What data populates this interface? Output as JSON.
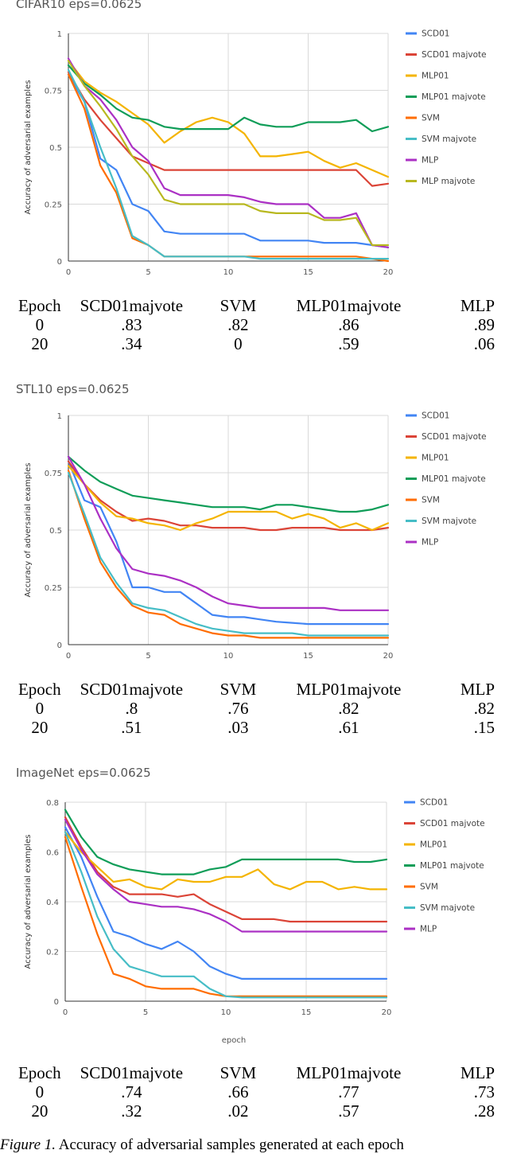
{
  "charts": [
    {
      "title": "CIFAR10 eps=0.0625",
      "chart_data": {
        "type": "line",
        "title": "CIFAR10 eps=0.0625",
        "xlabel": "",
        "ylabel": "Accuracy of adversarial examples",
        "xlim": [
          0,
          20
        ],
        "ylim": [
          0,
          1
        ],
        "xticks": [
          "0",
          "5",
          "10",
          "15",
          "20"
        ],
        "yticks": [
          "0",
          "0.25",
          "0.5",
          "0.75",
          "1"
        ],
        "x": [
          0,
          1,
          2,
          3,
          4,
          5,
          6,
          7,
          8,
          9,
          10,
          11,
          12,
          13,
          14,
          15,
          16,
          17,
          18,
          19,
          20
        ],
        "series": [
          {
            "name": "SCD01",
            "color": "#4285f4",
            "values": [
              0.82,
              0.7,
              0.45,
              0.4,
              0.25,
              0.22,
              0.13,
              0.12,
              0.12,
              0.12,
              0.12,
              0.12,
              0.09,
              0.09,
              0.09,
              0.09,
              0.08,
              0.08,
              0.08,
              0.07,
              0.06
            ]
          },
          {
            "name": "SCD01 majvote",
            "color": "#db4437",
            "values": [
              0.83,
              0.71,
              0.62,
              0.54,
              0.46,
              0.43,
              0.4,
              0.4,
              0.4,
              0.4,
              0.4,
              0.4,
              0.4,
              0.4,
              0.4,
              0.4,
              0.4,
              0.4,
              0.4,
              0.33,
              0.34
            ]
          },
          {
            "name": "MLP01",
            "color": "#f4b400",
            "values": [
              0.88,
              0.79,
              0.74,
              0.7,
              0.65,
              0.6,
              0.52,
              0.57,
              0.61,
              0.63,
              0.61,
              0.56,
              0.46,
              0.46,
              0.47,
              0.48,
              0.44,
              0.41,
              0.43,
              0.4,
              0.37
            ]
          },
          {
            "name": "MLP01 majvote",
            "color": "#0f9d58",
            "values": [
              0.86,
              0.78,
              0.73,
              0.67,
              0.63,
              0.62,
              0.59,
              0.58,
              0.58,
              0.58,
              0.58,
              0.63,
              0.6,
              0.59,
              0.59,
              0.61,
              0.61,
              0.61,
              0.62,
              0.57,
              0.59
            ]
          },
          {
            "name": "SVM",
            "color": "#ff6d01",
            "values": [
              0.82,
              0.67,
              0.42,
              0.3,
              0.1,
              0.07,
              0.02,
              0.02,
              0.02,
              0.02,
              0.02,
              0.02,
              0.02,
              0.02,
              0.02,
              0.02,
              0.02,
              0.02,
              0.02,
              0.01,
              0.0
            ]
          },
          {
            "name": "SVM majvote",
            "color": "#46bdc6",
            "values": [
              0.84,
              0.7,
              0.5,
              0.32,
              0.11,
              0.07,
              0.02,
              0.02,
              0.02,
              0.02,
              0.02,
              0.02,
              0.01,
              0.01,
              0.01,
              0.01,
              0.01,
              0.01,
              0.01,
              0.01,
              0.01
            ]
          },
          {
            "name": "MLP",
            "color": "#ab30c4",
            "values": [
              0.89,
              0.77,
              0.71,
              0.62,
              0.5,
              0.44,
              0.32,
              0.29,
              0.29,
              0.29,
              0.29,
              0.28,
              0.26,
              0.25,
              0.25,
              0.25,
              0.19,
              0.19,
              0.21,
              0.07,
              0.06
            ]
          },
          {
            "name": "MLP majvote",
            "color": "#b8b81f",
            "values": [
              0.88,
              0.77,
              0.68,
              0.58,
              0.46,
              0.38,
              0.27,
              0.25,
              0.25,
              0.25,
              0.25,
              0.25,
              0.22,
              0.21,
              0.21,
              0.21,
              0.18,
              0.18,
              0.19,
              0.07,
              0.07
            ]
          }
        ]
      },
      "table": {
        "headers": [
          "Epoch",
          "SCD01majvote",
          "SVM",
          "MLP01majvote",
          "MLP"
        ],
        "rows": [
          [
            "0",
            ".83",
            ".82",
            ".86",
            ".89"
          ],
          [
            "20",
            ".34",
            "0",
            ".59",
            ".06"
          ]
        ]
      }
    },
    {
      "title": "STL10 eps=0.0625",
      "chart_data": {
        "type": "line",
        "title": "STL10 eps=0.0625",
        "xlabel": "",
        "ylabel": "Accuracy of adversarial examples",
        "xlim": [
          0,
          20
        ],
        "ylim": [
          0,
          1
        ],
        "xticks": [
          "0",
          "5",
          "10",
          "15",
          "20"
        ],
        "yticks": [
          "0",
          "0.25",
          "0.5",
          "0.75",
          "1"
        ],
        "x": [
          0,
          1,
          2,
          3,
          4,
          5,
          6,
          7,
          8,
          9,
          10,
          11,
          12,
          13,
          14,
          15,
          16,
          17,
          18,
          19,
          20
        ],
        "series": [
          {
            "name": "SCD01",
            "color": "#4285f4",
            "values": [
              0.8,
              0.63,
              0.6,
              0.45,
              0.25,
              0.25,
              0.23,
              0.23,
              0.18,
              0.13,
              0.12,
              0.12,
              0.11,
              0.1,
              0.095,
              0.09,
              0.09,
              0.09,
              0.09,
              0.09,
              0.09
            ]
          },
          {
            "name": "SCD01 majvote",
            "color": "#db4437",
            "values": [
              0.8,
              0.7,
              0.63,
              0.58,
              0.54,
              0.55,
              0.54,
              0.52,
              0.52,
              0.51,
              0.51,
              0.51,
              0.5,
              0.5,
              0.51,
              0.51,
              0.51,
              0.5,
              0.5,
              0.5,
              0.51
            ]
          },
          {
            "name": "MLP01",
            "color": "#f4b400",
            "values": [
              0.78,
              0.7,
              0.62,
              0.56,
              0.55,
              0.53,
              0.52,
              0.5,
              0.53,
              0.55,
              0.58,
              0.58,
              0.58,
              0.58,
              0.55,
              0.57,
              0.55,
              0.51,
              0.53,
              0.5,
              0.53
            ]
          },
          {
            "name": "MLP01 majvote",
            "color": "#0f9d58",
            "values": [
              0.82,
              0.76,
              0.71,
              0.68,
              0.65,
              0.64,
              0.63,
              0.62,
              0.61,
              0.6,
              0.6,
              0.6,
              0.59,
              0.61,
              0.61,
              0.6,
              0.59,
              0.58,
              0.58,
              0.59,
              0.61
            ]
          },
          {
            "name": "SVM",
            "color": "#ff6d01",
            "values": [
              0.76,
              0.55,
              0.36,
              0.25,
              0.17,
              0.14,
              0.13,
              0.09,
              0.07,
              0.05,
              0.04,
              0.04,
              0.03,
              0.03,
              0.03,
              0.03,
              0.03,
              0.03,
              0.03,
              0.03,
              0.03
            ]
          },
          {
            "name": "SVM majvote",
            "color": "#46bdc6",
            "values": [
              0.75,
              0.57,
              0.38,
              0.27,
              0.18,
              0.16,
              0.15,
              0.12,
              0.09,
              0.07,
              0.06,
              0.05,
              0.05,
              0.05,
              0.05,
              0.04,
              0.04,
              0.04,
              0.04,
              0.04,
              0.04
            ]
          },
          {
            "name": "MLP",
            "color": "#ab30c4",
            "values": [
              0.82,
              0.7,
              0.55,
              0.42,
              0.33,
              0.31,
              0.3,
              0.28,
              0.25,
              0.21,
              0.18,
              0.17,
              0.16,
              0.16,
              0.16,
              0.16,
              0.16,
              0.15,
              0.15,
              0.15,
              0.15
            ]
          }
        ]
      },
      "table": {
        "headers": [
          "Epoch",
          "SCD01majvote",
          "SVM",
          "MLP01majvote",
          "MLP"
        ],
        "rows": [
          [
            "0",
            ".8",
            ".76",
            ".82",
            ".82"
          ],
          [
            "20",
            ".51",
            ".03",
            ".61",
            ".15"
          ]
        ]
      }
    },
    {
      "title": "ImageNet eps=0.0625",
      "chart_data": {
        "type": "line",
        "title": "ImageNet eps=0.0625",
        "xlabel": "epoch",
        "ylabel": "Accuracy of adversarial examples",
        "xlim": [
          0,
          20
        ],
        "ylim": [
          0,
          0.8
        ],
        "xticks": [
          "0",
          "5",
          "10",
          "15",
          "20"
        ],
        "yticks": [
          "0",
          "0.2",
          "0.4",
          "0.6",
          "0.8"
        ],
        "x": [
          0,
          1,
          2,
          3,
          4,
          5,
          6,
          7,
          8,
          9,
          10,
          11,
          12,
          13,
          14,
          15,
          16,
          17,
          18,
          19,
          20
        ],
        "series": [
          {
            "name": "SCD01",
            "color": "#4285f4",
            "values": [
              0.7,
              0.58,
              0.42,
              0.28,
              0.26,
              0.23,
              0.21,
              0.24,
              0.2,
              0.14,
              0.11,
              0.09,
              0.09,
              0.09,
              0.09,
              0.09,
              0.09,
              0.09,
              0.09,
              0.09,
              0.09
            ]
          },
          {
            "name": "SCD01 majvote",
            "color": "#db4437",
            "values": [
              0.74,
              0.62,
              0.52,
              0.46,
              0.43,
              0.43,
              0.43,
              0.42,
              0.43,
              0.39,
              0.36,
              0.33,
              0.33,
              0.33,
              0.32,
              0.32,
              0.32,
              0.32,
              0.32,
              0.32,
              0.32
            ]
          },
          {
            "name": "MLP01",
            "color": "#f4b400",
            "values": [
              0.68,
              0.6,
              0.54,
              0.48,
              0.49,
              0.46,
              0.45,
              0.49,
              0.48,
              0.48,
              0.5,
              0.5,
              0.53,
              0.47,
              0.45,
              0.48,
              0.48,
              0.45,
              0.46,
              0.45,
              0.45
            ]
          },
          {
            "name": "MLP01 majvote",
            "color": "#0f9d58",
            "values": [
              0.77,
              0.66,
              0.58,
              0.55,
              0.53,
              0.52,
              0.51,
              0.51,
              0.51,
              0.53,
              0.54,
              0.57,
              0.57,
              0.57,
              0.57,
              0.57,
              0.57,
              0.57,
              0.56,
              0.56,
              0.57
            ]
          },
          {
            "name": "SVM",
            "color": "#ff6d01",
            "values": [
              0.66,
              0.46,
              0.27,
              0.11,
              0.09,
              0.06,
              0.05,
              0.05,
              0.05,
              0.03,
              0.02,
              0.02,
              0.02,
              0.02,
              0.02,
              0.02,
              0.02,
              0.02,
              0.02,
              0.02,
              0.02
            ]
          },
          {
            "name": "SVM majvote",
            "color": "#46bdc6",
            "values": [
              0.68,
              0.52,
              0.34,
              0.21,
              0.14,
              0.12,
              0.1,
              0.1,
              0.1,
              0.05,
              0.02,
              0.015,
              0.015,
              0.015,
              0.015,
              0.015,
              0.015,
              0.015,
              0.015,
              0.015,
              0.015
            ]
          },
          {
            "name": "MLP",
            "color": "#ab30c4",
            "values": [
              0.73,
              0.61,
              0.51,
              0.45,
              0.4,
              0.39,
              0.38,
              0.38,
              0.37,
              0.35,
              0.32,
              0.28,
              0.28,
              0.28,
              0.28,
              0.28,
              0.28,
              0.28,
              0.28,
              0.28,
              0.28
            ]
          }
        ]
      },
      "table": {
        "headers": [
          "Epoch",
          "SCD01majvote",
          "SVM",
          "MLP01majvote",
          "MLP"
        ],
        "rows": [
          [
            "0",
            ".74",
            ".66",
            ".77",
            ".73"
          ],
          [
            "20",
            ".32",
            ".02",
            ".57",
            ".28"
          ]
        ]
      }
    }
  ],
  "caption": {
    "label": "Figure 1.",
    "text": "Accuracy of adversarial samples generated at each epoch"
  }
}
